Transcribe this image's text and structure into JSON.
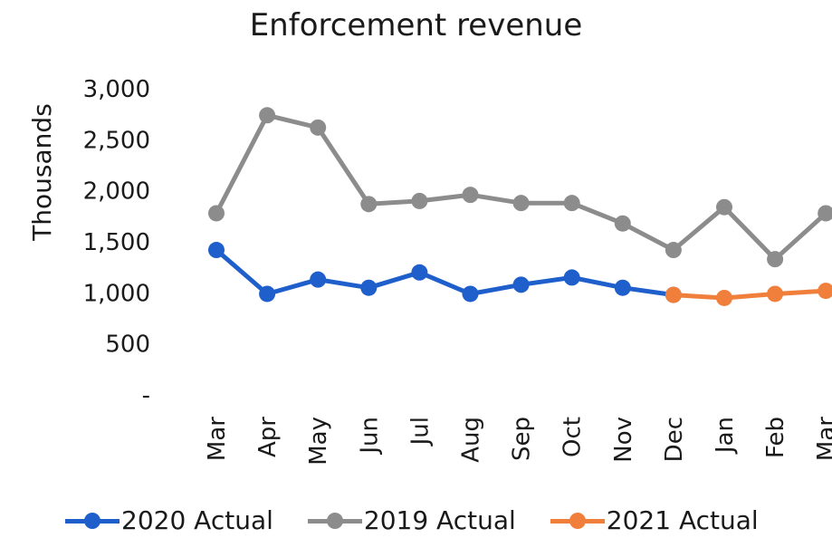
{
  "chart_data": {
    "type": "line",
    "title": "Enforcement revenue",
    "ylabel": "Thousands",
    "xlabel": "",
    "ylim": [
      0,
      3000
    ],
    "yticks": [
      {
        "value": 0,
        "label": "-"
      },
      {
        "value": 500,
        "label": "500"
      },
      {
        "value": 1000,
        "label": "1,000"
      },
      {
        "value": 1500,
        "label": "1,500"
      },
      {
        "value": 2000,
        "label": "2,000"
      },
      {
        "value": 2500,
        "label": "2,500"
      },
      {
        "value": 3000,
        "label": "3,000"
      }
    ],
    "categories": [
      "Mar",
      "Apr",
      "May",
      "Jun",
      "Jul",
      "Aug",
      "Sep",
      "Oct",
      "Nov",
      "Dec",
      "Jan",
      "Feb",
      "Mar"
    ],
    "series": [
      {
        "name": "2020 Actual",
        "color": "#1f5fcc",
        "values": [
          1420,
          990,
          1130,
          1050,
          1200,
          990,
          1080,
          1150,
          1050,
          980,
          null,
          null,
          null
        ]
      },
      {
        "name": "2019 Actual",
        "color": "#8c8c8c",
        "values": [
          1780,
          2740,
          2620,
          1870,
          1900,
          1960,
          1880,
          1880,
          1680,
          1420,
          1840,
          1330,
          1780
        ]
      },
      {
        "name": "2021 Actual",
        "color": "#f07f3c",
        "values": [
          null,
          null,
          null,
          null,
          null,
          null,
          null,
          null,
          null,
          980,
          950,
          990,
          1020
        ]
      }
    ],
    "legend_position": "bottom",
    "grid": false
  }
}
